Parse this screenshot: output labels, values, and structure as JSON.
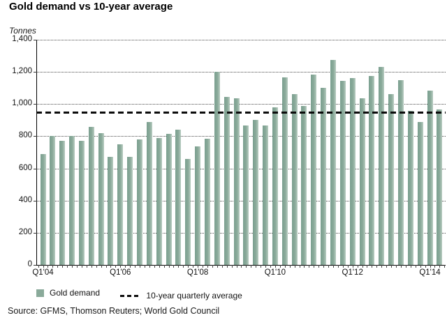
{
  "header": {
    "title": "Gold demand vs 10-year average"
  },
  "unit_label": "Tonnes",
  "source": {
    "text": "Source: GFMS, Thomson Reuters; World Gold Council"
  },
  "legend": {
    "bar_label": "Gold demand",
    "line_label": "10-year quarterly average"
  },
  "colors": {
    "bar": "#8aaa9a",
    "average_line": "#0b0b0b"
  },
  "chart_data": {
    "type": "bar",
    "title": "Gold demand vs 10-year average",
    "ylabel": "Tonnes",
    "ylim": [
      0,
      1400
    ],
    "ytick_step": 200,
    "ytick_labels": [
      "0",
      "200",
      "400",
      "600",
      "800",
      "1,000",
      "1,200",
      "1,400"
    ],
    "grid": "horizontal dotted",
    "legend_position": "bottom",
    "categories": [
      "Q1'04",
      "Q2'04",
      "Q3'04",
      "Q4'04",
      "Q1'05",
      "Q2'05",
      "Q3'05",
      "Q4'05",
      "Q1'06",
      "Q2'06",
      "Q3'06",
      "Q4'06",
      "Q1'07",
      "Q2'07",
      "Q3'07",
      "Q4'07",
      "Q1'08",
      "Q2'08",
      "Q3'08",
      "Q4'08",
      "Q1'09",
      "Q2'09",
      "Q3'09",
      "Q4'09",
      "Q1'10",
      "Q2'10",
      "Q3'10",
      "Q4'10",
      "Q1'11",
      "Q2'11",
      "Q3'11",
      "Q4'11",
      "Q1'12",
      "Q2'12",
      "Q3'12",
      "Q4'12",
      "Q1'13",
      "Q2'13",
      "Q3'13",
      "Q4'13",
      "Q1'14",
      "Q2'14"
    ],
    "series": [
      {
        "name": "Gold demand",
        "values": [
          690,
          800,
          770,
          800,
          770,
          860,
          820,
          670,
          750,
          670,
          780,
          890,
          790,
          815,
          840,
          660,
          735,
          785,
          1200,
          1045,
          1035,
          865,
          900,
          865,
          980,
          1165,
          1060,
          990,
          1185,
          1100,
          1275,
          1145,
          1160,
          1035,
          1175,
          1230,
          1060,
          1150,
          960,
          890,
          1085,
          965
        ]
      }
    ],
    "average_line": {
      "name": "10-year quarterly average",
      "value": 950
    },
    "xtick_labels_visible": [
      "Q1'04",
      "Q1'06",
      "Q1'08",
      "Q1'10",
      "Q1'12",
      "Q1'14"
    ]
  }
}
